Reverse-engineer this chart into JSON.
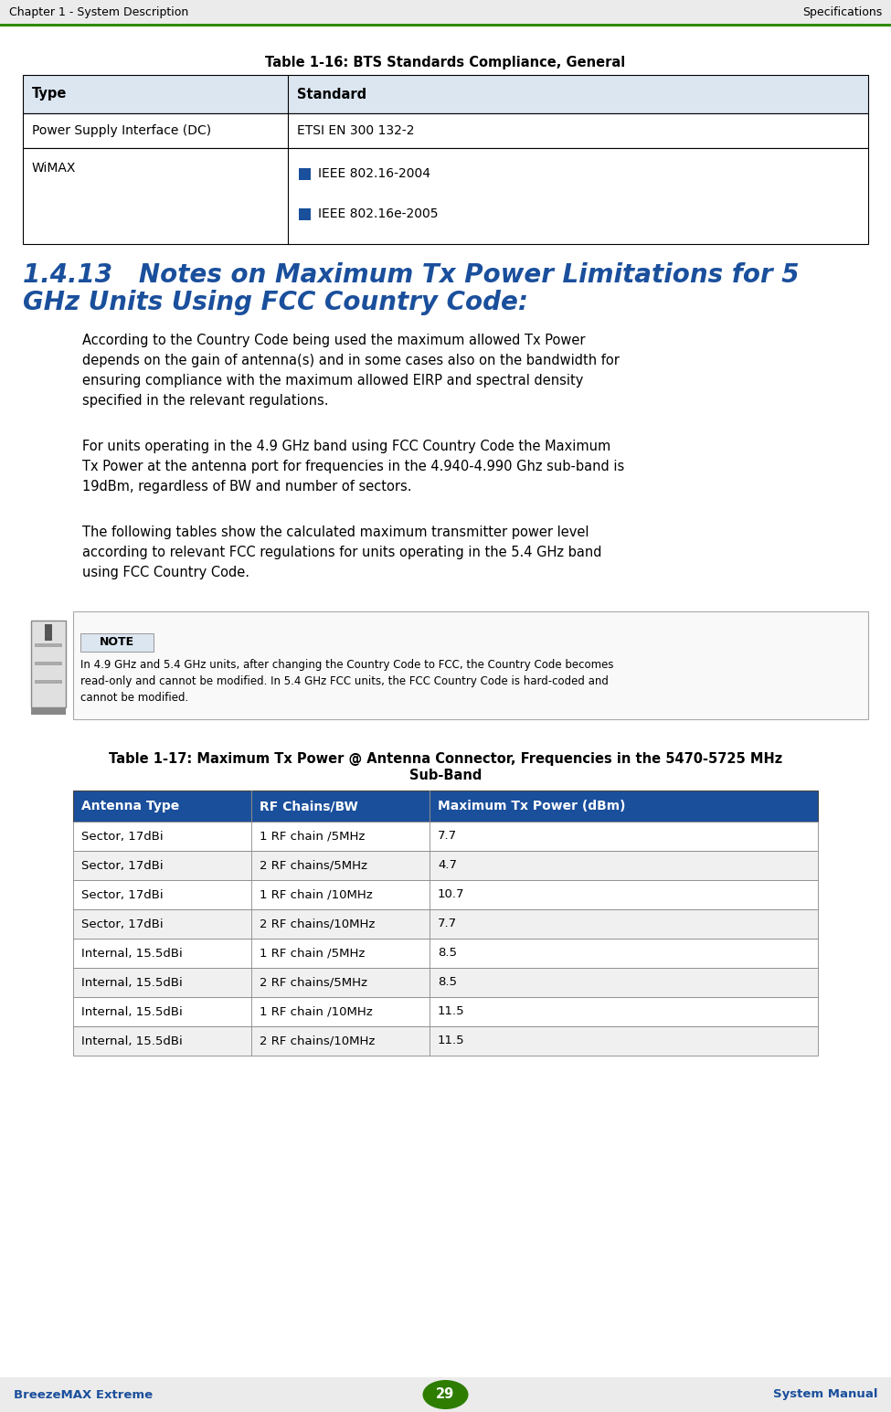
{
  "page_bg": "#ffffff",
  "header_bg": "#ebebeb",
  "footer_bg": "#ebebeb",
  "header_left": "Chapter 1 - System Description",
  "header_right": "Specifications",
  "header_line_color": "#2e8b00",
  "footer_left": "BreezeMAX Extreme",
  "footer_right": "System Manual",
  "footer_page": "29",
  "footer_page_bg": "#2e7d00",
  "footer_page_color": "#ffffff",
  "table1_title": "Table 1-16: BTS Standards Compliance, General",
  "table1_header": [
    "Type",
    "Standard"
  ],
  "table1_header_bg": "#dce6f1",
  "table1_border_color": "#000000",
  "section_title_line1": "1.4.13   Notes on Maximum Tx Power Limitations for 5",
  "section_title_line2": "GHz Units Using FCC Country Code:",
  "section_title_color": "#1a4f9c",
  "para1": "According to the Country Code being used the maximum allowed Tx Power\ndepends on the gain of antenna(s) and in some cases also on the bandwidth for\nensuring compliance with the maximum allowed EIRP and spectral density\nspecified in the relevant regulations.",
  "para2": "For units operating in the 4.9 GHz band using FCC Country Code the Maximum\nTx Power at the antenna port for frequencies in the 4.940-4.990 Ghz sub-band is\n19dBm, regardless of BW and number of sectors.",
  "para3": "The following tables show the calculated maximum transmitter power level\naccording to relevant FCC regulations for units operating in the 5.4 GHz band\nusing FCC Country Code.",
  "note_label": "NOTE",
  "note_label_bg": "#dce6f1",
  "note_text": "In 4.9 GHz and 5.4 GHz units, after changing the Country Code to FCC, the Country Code becomes\nread-only and cannot be modified. In 5.4 GHz FCC units, the FCC Country Code is hard-coded and\ncannot be modified.",
  "table2_title_line1": "Table 1-17: Maximum Tx Power @ Antenna Connector, Frequencies in the 5470-5725 MHz",
  "table2_title_line2": "Sub-Band",
  "table2_header": [
    "Antenna Type",
    "RF Chains/BW",
    "Maximum Tx Power (dBm)"
  ],
  "table2_header_bg": "#1a4f9c",
  "table2_header_color": "#ffffff",
  "table2_rows": [
    [
      "Sector, 17dBi",
      "1 RF chain /5MHz",
      "7.7"
    ],
    [
      "Sector, 17dBi",
      "2 RF chains/5MHz",
      "4.7"
    ],
    [
      "Sector, 17dBi",
      "1 RF chain /10MHz",
      "10.7"
    ],
    [
      "Sector, 17dBi",
      "2 RF chains/10MHz",
      "7.7"
    ],
    [
      "Internal, 15.5dBi",
      "1 RF chain /5MHz",
      "8.5"
    ],
    [
      "Internal, 15.5dBi",
      "2 RF chains/5MHz",
      "8.5"
    ],
    [
      "Internal, 15.5dBi",
      "1 RF chain /10MHz",
      "11.5"
    ],
    [
      "Internal, 15.5dBi",
      "2 RF chains/10MHz",
      "11.5"
    ]
  ],
  "table2_row_bg_alt": [
    "#ffffff",
    "#f0f0f0"
  ],
  "bullet_color": "#1a4f9c",
  "text_color": "#000000"
}
